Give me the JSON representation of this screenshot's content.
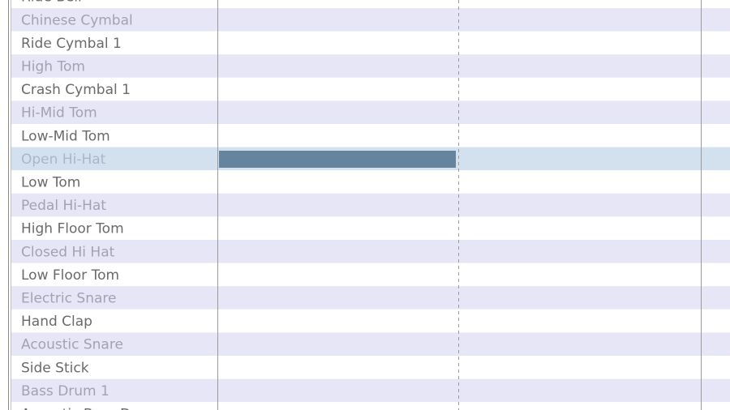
{
  "drum_rows": [
    "Ride Bell",
    "Chinese Cymbal",
    "Ride Cymbal 1",
    "High Tom",
    "Crash Cymbal 1",
    "Hi-Mid Tom",
    "Low-Mid Tom",
    "Open Hi-Hat",
    "Low Tom",
    "Pedal Hi-Hat",
    "High Floor Tom",
    "Closed Hi Hat",
    "Low Floor Tom",
    "Electric Snare",
    "Hand Clap",
    "Acoustic Snare",
    "Side Stick",
    "Bass Drum 1",
    "Acoustic Bass Drum"
  ]
}
